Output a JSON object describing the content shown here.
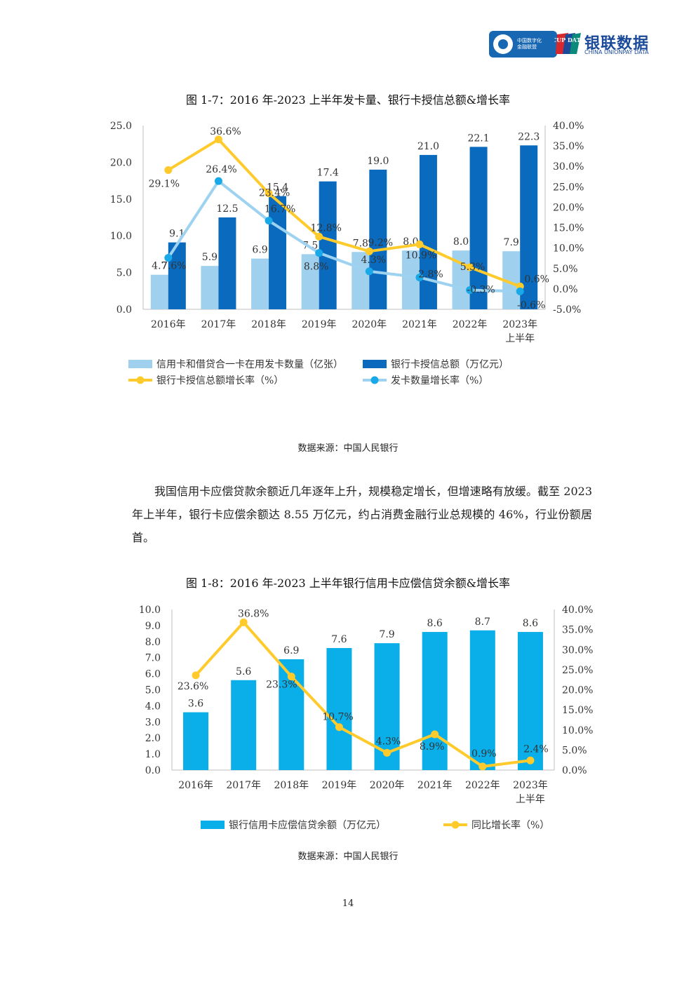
{
  "header": {
    "logo1_lines": [
      "中国数字化",
      "金融联盟"
    ],
    "logo2_name": "银联数据",
    "logo2_sub": "CHINA UNIONPAY DATA",
    "logo2_mark": "CUP DATA"
  },
  "figure1": {
    "title": "图 1-7：2016 年-2023 上半年发卡量、银行卡授信总额&增长率",
    "source": "数据来源：中国人民银行"
  },
  "paragraph": "我国信用卡应偿贷款余额近几年逐年上升，规模稳定增长，但增速略有放缓。截至 2023 年上半年，银行卡应偿余额达 8.55 万亿元，约占消费金融行业总规模的 46%，行业份额居首。",
  "figure2": {
    "title": "图 1-8：2016 年-2023 上半年银行信用卡应偿信贷余额&增长率",
    "source": "数据来源：中国人民银行"
  },
  "page_number": "14",
  "colors": {
    "light_blue": "#9fd0ee",
    "dark_blue": "#0a6abd",
    "yellow": "#ffcb2c",
    "sky_line": "#9dd2f0",
    "cyan_dot": "#19a9e8",
    "bar2": "#0aaee8"
  },
  "chart_data": [
    {
      "type": "bar",
      "categories": [
        "2016年",
        "2017年",
        "2018年",
        "2019年",
        "2020年",
        "2021年",
        "2022年",
        "2023年上半年"
      ],
      "left_axis": {
        "ylim": [
          0,
          25
        ],
        "ticks": [
          "0.0",
          "5.0",
          "10.0",
          "15.0",
          "20.0",
          "25.0"
        ]
      },
      "right_axis": {
        "ylim": [
          -5,
          40
        ],
        "ticks": [
          "-5.0%",
          "0.0%",
          "5.0%",
          "10.0%",
          "15.0%",
          "20.0%",
          "25.0%",
          "30.0%",
          "35.0%",
          "40.0%"
        ]
      },
      "series": [
        {
          "name": "信用卡和借贷合一卡在用发卡数量（亿张）",
          "type": "bar",
          "axis": "left",
          "values": [
            4.7,
            5.9,
            6.9,
            7.5,
            7.8,
            8.0,
            8.0,
            7.9
          ],
          "labels": [
            "4.7",
            "5.9",
            "6.9",
            "7.5",
            "7.8",
            "8.0",
            "8.0",
            "7.9"
          ]
        },
        {
          "name": "银行卡授信总额（万亿元）",
          "type": "bar",
          "axis": "left",
          "values": [
            9.1,
            12.5,
            15.4,
            17.4,
            19.0,
            21.0,
            22.1,
            22.3
          ],
          "labels": [
            "9.1",
            "12.5",
            "15.4",
            "17.4",
            "19.0",
            "21.0",
            "22.1",
            "22.3"
          ]
        },
        {
          "name": "银行卡授信总额增长率（%）",
          "type": "line",
          "axis": "right",
          "values": [
            29.1,
            36.6,
            23.4,
            12.8,
            9.2,
            10.9,
            5.3,
            0.6
          ],
          "labels": [
            "29.1%",
            "36.6%",
            "23.4%",
            "12.8%",
            "9.2%",
            "10.9%",
            "5.3%",
            "0.6%"
          ]
        },
        {
          "name": "发卡数量增长率（%）",
          "type": "line",
          "axis": "right",
          "values": [
            7.6,
            26.4,
            16.7,
            8.8,
            4.3,
            2.8,
            -0.3,
            -0.6
          ],
          "labels": [
            "7.6%",
            "26.4%",
            "16.7%",
            "8.8%",
            "4.3%",
            "2.8%",
            "-0.3%",
            "-0.6%"
          ]
        }
      ],
      "legend": "bottom"
    },
    {
      "type": "bar",
      "categories": [
        "2016年",
        "2017年",
        "2018年",
        "2019年",
        "2020年",
        "2021年",
        "2022年",
        "2023年上半年"
      ],
      "left_axis": {
        "ylim": [
          0,
          10
        ],
        "ticks": [
          "0.0",
          "1.0",
          "2.0",
          "3.0",
          "4.0",
          "5.0",
          "6.0",
          "7.0",
          "8.0",
          "9.0",
          "10.0"
        ]
      },
      "right_axis": {
        "ylim": [
          0,
          40
        ],
        "ticks": [
          "0.0%",
          "5.0%",
          "10.0%",
          "15.0%",
          "20.0%",
          "25.0%",
          "30.0%",
          "35.0%",
          "40.0%"
        ]
      },
      "series": [
        {
          "name": "银行信用卡应偿信贷余额（万亿元）",
          "type": "bar",
          "axis": "left",
          "values": [
            3.6,
            5.6,
            6.9,
            7.6,
            7.9,
            8.6,
            8.7,
            8.6
          ],
          "labels": [
            "3.6",
            "5.6",
            "6.9",
            "7.6",
            "7.9",
            "8.6",
            "8.7",
            "8.6"
          ]
        },
        {
          "name": "同比增长率（%）",
          "type": "line",
          "axis": "right",
          "values": [
            23.6,
            36.8,
            23.3,
            10.7,
            4.3,
            8.9,
            0.9,
            2.4
          ],
          "labels": [
            "23.6%",
            "36.8%",
            "23.3%",
            "10.7%",
            "4.3%",
            "8.9%",
            "0.9%",
            "2.4%"
          ]
        }
      ],
      "legend": "bottom"
    }
  ]
}
